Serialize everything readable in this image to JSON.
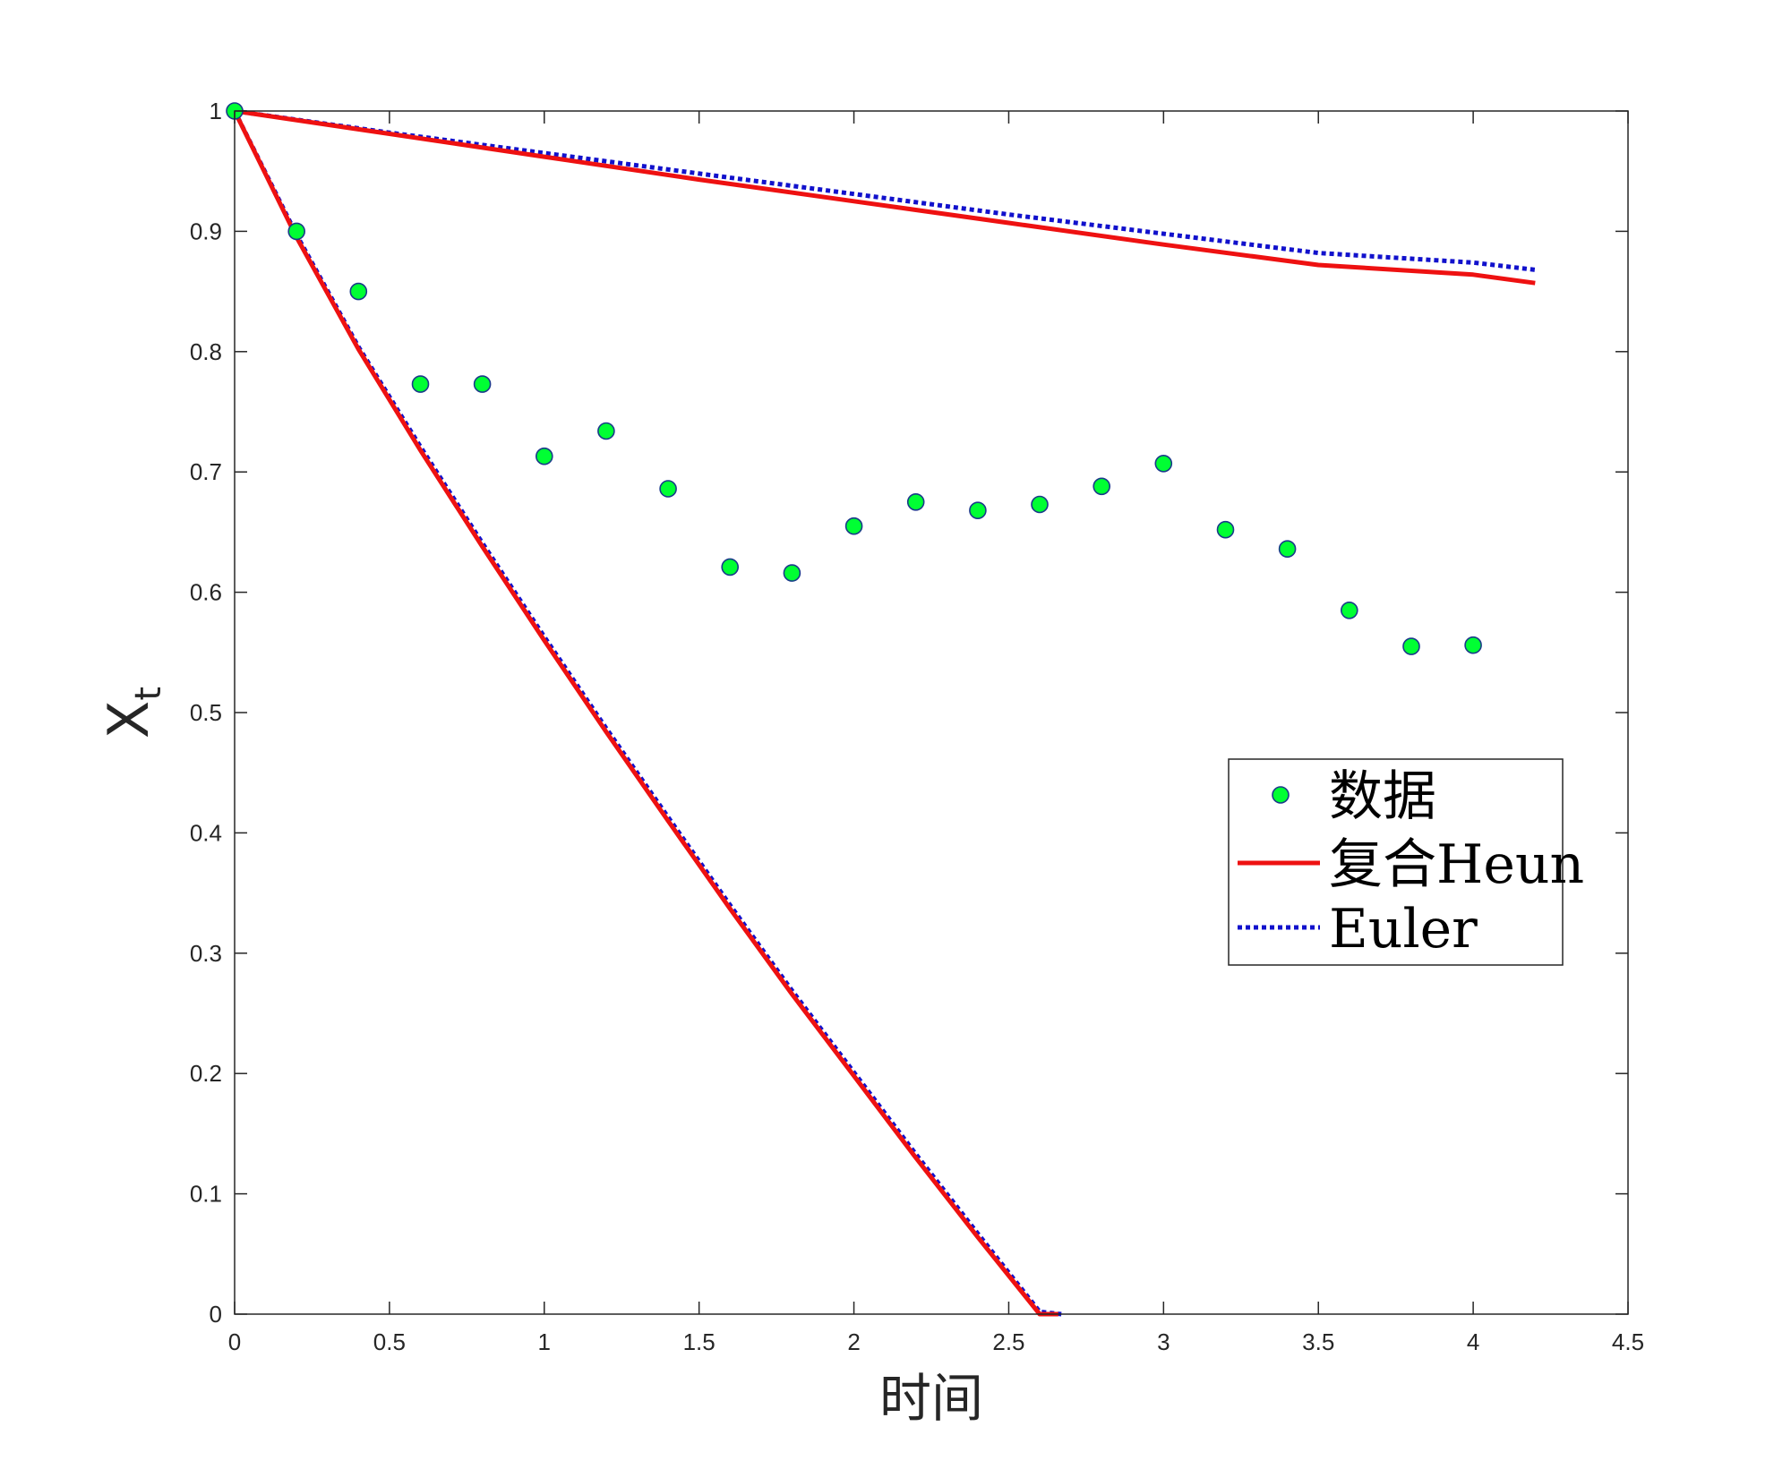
{
  "chart_data": {
    "type": "line",
    "title": "",
    "xlabel": "时间",
    "ylabel": "X",
    "ylabel_subscript": "t",
    "xlim": [
      0,
      4.5
    ],
    "ylim": [
      0,
      1
    ],
    "xticks": [
      0,
      0.5,
      1,
      1.5,
      2,
      2.5,
      3,
      3.5,
      4,
      4.5
    ],
    "xtick_labels": [
      "0",
      "0.5",
      "1",
      "1.5",
      "2",
      "2.5",
      "3",
      "3.5",
      "4",
      "4.5"
    ],
    "yticks": [
      0,
      0.1,
      0.2,
      0.3,
      0.4,
      0.5,
      0.6,
      0.7,
      0.8,
      0.9,
      1
    ],
    "ytick_labels": [
      "0",
      "0.1",
      "0.2",
      "0.3",
      "0.4",
      "0.5",
      "0.6",
      "0.7",
      "0.8",
      "0.9",
      "1"
    ],
    "grid": false,
    "legend_position": "right",
    "colors": {
      "data_fill": "#00ff33",
      "data_edge": "#1a3a8a",
      "heun": "#ee1111",
      "euler": "#1111cc",
      "axes": "#262626"
    },
    "legend": [
      {
        "label": "数据",
        "style": "marker"
      },
      {
        "label": "复合Heun",
        "style": "solid"
      },
      {
        "label": "Euler",
        "style": "dotted"
      }
    ],
    "series": [
      {
        "name": "数据",
        "kind": "scatter",
        "x": [
          0,
          0.2,
          0.4,
          0.6,
          0.8,
          1.0,
          1.2,
          1.4,
          1.6,
          1.8,
          2.0,
          2.2,
          2.4,
          2.6,
          2.8,
          3.0,
          3.2,
          3.4,
          3.6,
          3.8,
          4.0
        ],
        "y": [
          1.0,
          0.9,
          0.85,
          0.773,
          0.773,
          0.713,
          0.734,
          0.686,
          0.621,
          0.616,
          0.655,
          0.675,
          0.668,
          0.673,
          0.688,
          0.707,
          0.652,
          0.636,
          0.585,
          0.555,
          0.556
        ]
      },
      {
        "name": "复合Heun",
        "kind": "line",
        "style": "solid",
        "segments": [
          {
            "x": [
              0,
              0.5,
              1.0,
              1.5,
              2.0,
              2.5,
              3.0,
              3.5,
              4.0,
              4.2
            ],
            "y": [
              1.0,
              0.981,
              0.962,
              0.943,
              0.925,
              0.907,
              0.889,
              0.872,
              0.864,
              0.857
            ]
          },
          {
            "x": [
              0,
              0.2,
              0.4,
              0.6,
              0.8,
              1.0,
              1.2,
              1.4,
              1.6,
              1.8,
              2.0,
              2.2,
              2.4,
              2.6,
              2.66
            ],
            "y": [
              1.0,
              0.895,
              0.802,
              0.718,
              0.638,
              0.56,
              0.484,
              0.41,
              0.337,
              0.266,
              0.198,
              0.13,
              0.064,
              0.0,
              0.0
            ]
          }
        ]
      },
      {
        "name": "Euler",
        "kind": "line",
        "style": "dotted",
        "segments": [
          {
            "x": [
              0,
              0.5,
              1.0,
              1.5,
              2.0,
              2.5,
              3.0,
              3.5,
              4.0,
              4.2
            ],
            "y": [
              1.0,
              0.982,
              0.965,
              0.948,
              0.931,
              0.914,
              0.898,
              0.882,
              0.874,
              0.868
            ]
          },
          {
            "x": [
              0,
              0.2,
              0.4,
              0.6,
              0.8,
              1.0,
              1.2,
              1.4,
              1.6,
              1.8,
              2.0,
              2.2,
              2.4,
              2.6,
              2.67
            ],
            "y": [
              1.0,
              0.897,
              0.804,
              0.721,
              0.641,
              0.563,
              0.487,
              0.413,
              0.34,
              0.269,
              0.201,
              0.133,
              0.067,
              0.002,
              0.0
            ]
          }
        ]
      }
    ]
  }
}
